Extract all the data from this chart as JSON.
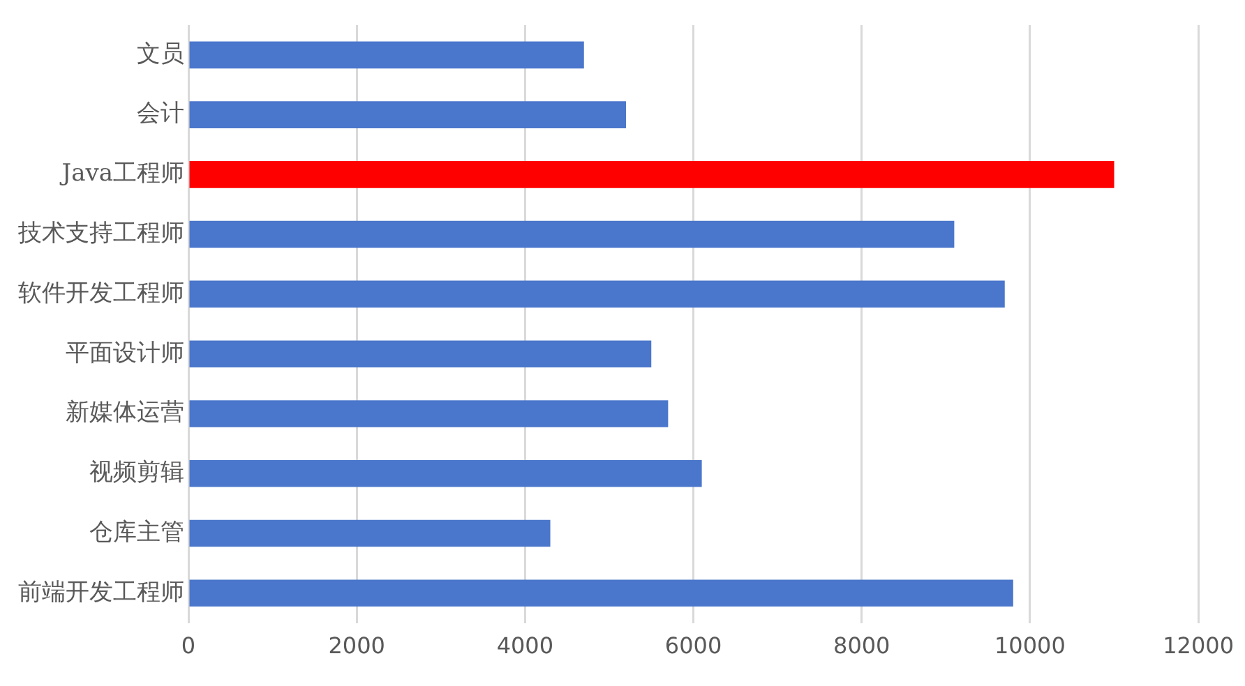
{
  "chart_data": {
    "type": "bar",
    "orientation": "horizontal",
    "categories": [
      "文员",
      "会计",
      "Java工程师",
      "技术支持工程师",
      "软件开发工程师",
      "平面设计师",
      "新媒体运营",
      "视频剪辑",
      "仓库主管",
      "前端开发工程师"
    ],
    "values": [
      4700,
      5200,
      11000,
      9100,
      9700,
      5500,
      5700,
      6100,
      4300,
      9800
    ],
    "colors": [
      "#4a76cb",
      "#4a76cb",
      "#ff0000",
      "#4a76cb",
      "#4a76cb",
      "#4a76cb",
      "#4a76cb",
      "#4a76cb",
      "#4a76cb",
      "#4a76cb"
    ],
    "xlim": [
      0,
      12000
    ],
    "xticks": [
      0,
      2000,
      4000,
      6000,
      8000,
      10000,
      12000
    ],
    "grid": "x",
    "legend": false
  }
}
